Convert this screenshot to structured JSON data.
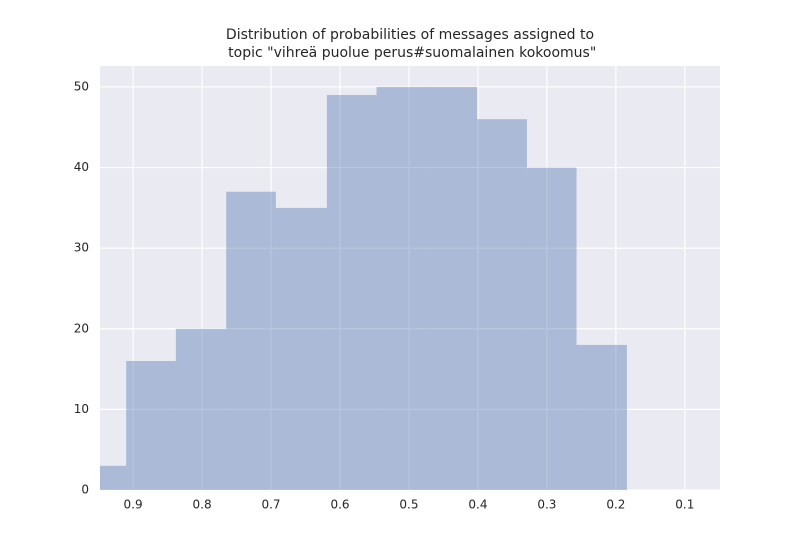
{
  "chart_data": {
    "type": "histogram",
    "title": [
      "Distribution of probabilities of messages assigned to",
      " topic \"vihreä puolue perus#suomalainen kokoomus\""
    ],
    "bins": [
      0.983,
      0.91,
      0.838,
      0.765,
      0.693,
      0.619,
      0.547,
      0.474,
      0.401,
      0.329,
      0.257,
      0.184
    ],
    "values": [
      3,
      16,
      20,
      37,
      35,
      49,
      50,
      50,
      46,
      40,
      18
    ],
    "color": "#4c72b0",
    "opacity": 0.4,
    "xlim": [
      0.948,
      0.049
    ],
    "xticks": [
      0.9,
      0.8,
      0.7,
      0.6,
      0.5,
      0.4,
      0.3,
      0.2,
      0.1
    ],
    "ylim": [
      0,
      52.6
    ],
    "yticks": [
      0,
      10,
      20,
      30,
      40,
      50
    ],
    "grid": true
  }
}
